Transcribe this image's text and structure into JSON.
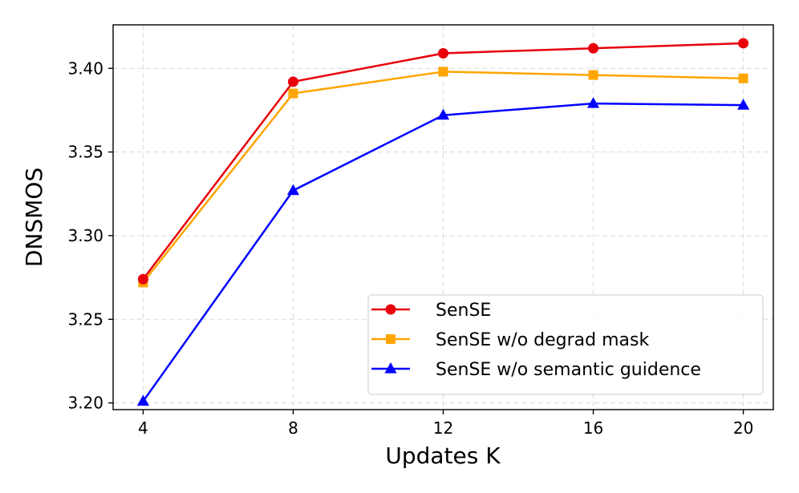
{
  "chart_data": {
    "type": "line",
    "title": "",
    "xlabel": "Updates K",
    "ylabel": "DNSMOS",
    "x": [
      4,
      8,
      12,
      16,
      20
    ],
    "xticks": [
      "4",
      "8",
      "12",
      "16",
      "20"
    ],
    "yticks": [
      3.2,
      3.25,
      3.3,
      3.35,
      3.4
    ],
    "ytick_labels": [
      "3.20",
      "3.25",
      "3.30",
      "3.35",
      "3.40"
    ],
    "xlim": [
      3.2,
      20.8
    ],
    "ylim": [
      3.196,
      3.426
    ],
    "grid": true,
    "legend_position": "bottom-right",
    "series": [
      {
        "name": "SenSE",
        "color": "#e8000b",
        "marker": "circle",
        "values": [
          3.274,
          3.392,
          3.409,
          3.412,
          3.415
        ]
      },
      {
        "name": "SenSE w/o degrad mask",
        "color": "#ffa500",
        "marker": "square",
        "values": [
          3.272,
          3.385,
          3.398,
          3.396,
          3.394
        ]
      },
      {
        "name": "SenSE w/o semantic guidence",
        "color": "#0000ff",
        "marker": "triangle",
        "values": [
          3.201,
          3.327,
          3.372,
          3.379,
          3.378
        ]
      }
    ]
  }
}
